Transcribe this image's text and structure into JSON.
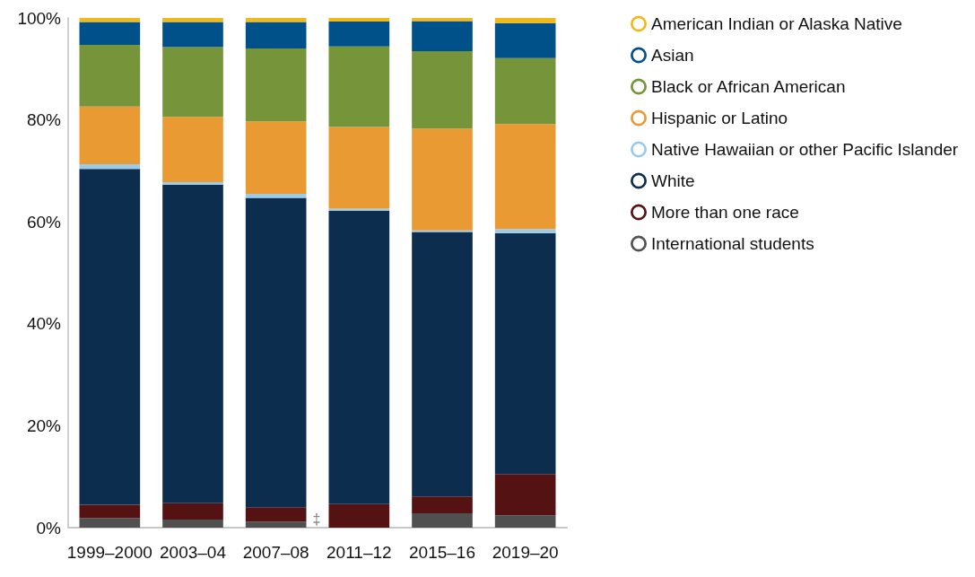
{
  "chart_data": {
    "type": "bar",
    "stacked": true,
    "categories": [
      "1999–2000",
      "2003–04",
      "2007–08",
      "2011–12",
      "2015–16",
      "2019–20"
    ],
    "ylim": [
      0,
      100
    ],
    "yticks": [
      {
        "value": 0,
        "label": "0%"
      },
      {
        "value": 20,
        "label": "20%"
      },
      {
        "value": 40,
        "label": "40%"
      },
      {
        "value": 60,
        "label": "60%"
      },
      {
        "value": 80,
        "label": "80%"
      },
      {
        "value": 100,
        "label": "100%"
      }
    ],
    "grid": false,
    "legend": "top right",
    "annotations": [
      {
        "text": "‡",
        "x": "2011–12",
        "y": 0
      }
    ],
    "series": [
      {
        "name": "International students",
        "color": "#505050",
        "values": [
          1.9,
          1.6,
          1.2,
          null,
          2.8,
          2.4
        ]
      },
      {
        "name": "More than one race",
        "color": "#541213",
        "values": [
          2.6,
          3.2,
          2.8,
          4.6,
          3.3,
          8.1
        ]
      },
      {
        "name": "White",
        "color": "#0d2d4f",
        "values": [
          65.9,
          62.5,
          60.7,
          57.6,
          51.9,
          47.3
        ]
      },
      {
        "name": "Native Hawaiian or other Pacific Islander",
        "color": "#9ccbea",
        "values": [
          0.9,
          0.5,
          0.8,
          0.4,
          0.3,
          0.8
        ]
      },
      {
        "name": "Hispanic or Latino",
        "color": "#ea9a32",
        "values": [
          11.3,
          12.8,
          14.2,
          16.0,
          20.0,
          20.6
        ]
      },
      {
        "name": "Black or African American",
        "color": "#76943a",
        "values": [
          12.1,
          13.7,
          14.3,
          15.8,
          15.2,
          12.9
        ]
      },
      {
        "name": "Asian",
        "color": "#00508a",
        "values": [
          4.5,
          4.9,
          5.2,
          4.9,
          5.9,
          6.9
        ]
      },
      {
        "name": "American Indian or Alaska Native",
        "color": "#f0b91a",
        "values": [
          0.8,
          0.8,
          0.8,
          0.8,
          0.6,
          1.0
        ]
      }
    ]
  }
}
